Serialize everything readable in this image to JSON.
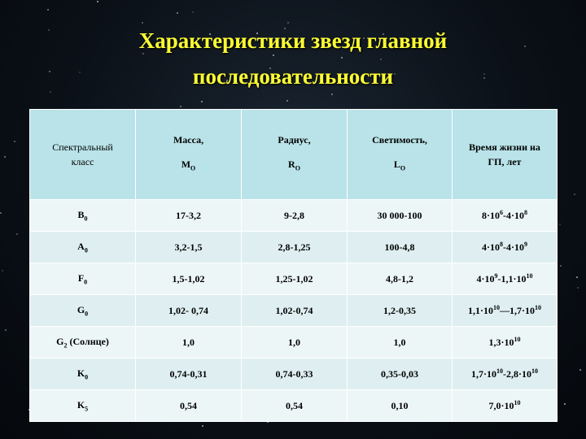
{
  "title": {
    "line1": "Характеристики  звезд главной",
    "line2": "последовательности"
  },
  "table": {
    "headers": [
      {
        "line1": "Спектральный",
        "line2": "класс"
      },
      {
        "line1": "Масса,",
        "symbol": "M",
        "sub": "O"
      },
      {
        "line1": "Радиус,",
        "symbol": "R",
        "sub": "O"
      },
      {
        "line1": "Светимость,",
        "symbol": "L",
        "sub": "O"
      },
      {
        "line1": "Время жизни на",
        "line2": "ГП, лет"
      }
    ],
    "rows": [
      {
        "cls": {
          "main": "B",
          "sub": "0",
          "rest": ""
        },
        "mass": "17-3,2",
        "radius": "9-2,8",
        "lum": "30 000-100",
        "life": [
          {
            "m": "8·10",
            "e": "6"
          },
          {
            "m": "-4·10",
            "e": "8"
          }
        ]
      },
      {
        "cls": {
          "main": "A",
          "sub": "0",
          "rest": ""
        },
        "mass": "3,2-1,5",
        "radius": "2,8-1,25",
        "lum": "100-4,8",
        "life": [
          {
            "m": "4·10",
            "e": "8"
          },
          {
            "m": "-4·10",
            "e": "9"
          }
        ]
      },
      {
        "cls": {
          "main": "F",
          "sub": "0",
          "rest": ""
        },
        "mass": "1,5-1,02",
        "radius": "1,25-1,02",
        "lum": "4,8-1,2",
        "life": [
          {
            "m": "4·10",
            "e": "9"
          },
          {
            "m": "-1,1·10",
            "e": "10"
          }
        ]
      },
      {
        "cls": {
          "main": "G",
          "sub": "0",
          "rest": ""
        },
        "mass": "1,02- 0,74",
        "radius": "1,02-0,74",
        "lum": "1,2-0,35",
        "life": [
          {
            "m": "1,1·10",
            "e": "10"
          },
          {
            "m": "—1,7·10",
            "e": "10"
          }
        ]
      },
      {
        "cls": {
          "main": "G",
          "sub": "2",
          "rest": " (Солнце)"
        },
        "mass": "1,0",
        "radius": "1,0",
        "lum": "1,0",
        "life": [
          {
            "m": "1,3·10",
            "e": "10"
          }
        ]
      },
      {
        "cls": {
          "main": "K",
          "sub": "0",
          "rest": ""
        },
        "mass": "0,74-0,31",
        "radius": "0,74-0,33",
        "lum": "0,35-0,03",
        "life": [
          {
            "m": "1,7·10",
            "e": "10"
          },
          {
            "m": "-2,8·10",
            "e": "10"
          }
        ]
      },
      {
        "cls": {
          "main": "K",
          "sub": "5",
          "rest": ""
        },
        "mass": "0,54",
        "radius": "0,54",
        "lum": "0,10",
        "life": [
          {
            "m": "7,0·10",
            "e": "10"
          }
        ]
      }
    ]
  }
}
